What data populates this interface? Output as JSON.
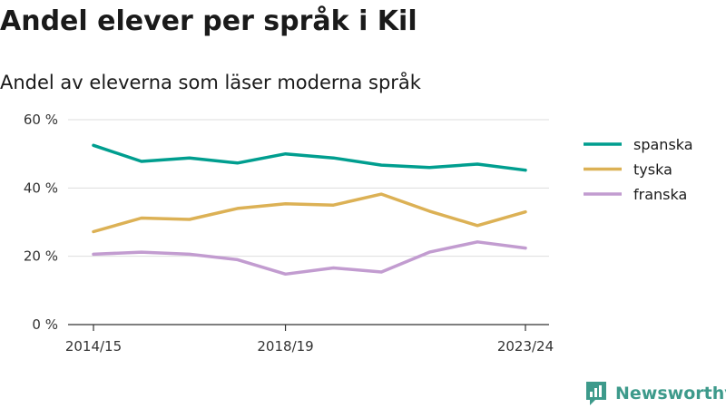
{
  "page": {
    "title": "Andel elever per språk i Kil",
    "subtitle": "Andel av eleverna som läser moderna språk",
    "brand": "Newsworthy",
    "colors": {
      "spanska": "#009e8f",
      "tyska": "#dcb155",
      "franska": "#c29cd0",
      "grid": "#dddddd",
      "axis": "#333333",
      "brand": "#3d9a8b"
    }
  },
  "chart_data": {
    "type": "line",
    "x": [
      "2014/15",
      "2015/16",
      "2016/17",
      "2017/18",
      "2018/19",
      "2019/20",
      "2020/21",
      "2021/22",
      "2022/23",
      "2023/24"
    ],
    "x_tick_labels": [
      "2014/15",
      "2018/19",
      "2023/24"
    ],
    "y_tick_labels": [
      "0 %",
      "20 %",
      "40 %",
      "60 %"
    ],
    "y_ticks": [
      0,
      20,
      40,
      60
    ],
    "ylim": [
      0,
      60
    ],
    "grid": true,
    "legend_position": "right",
    "series": [
      {
        "name": "spanska",
        "values": [
          52.5,
          47.8,
          48.8,
          47.3,
          50.0,
          48.8,
          46.7,
          46.0,
          47.0,
          45.2
        ]
      },
      {
        "name": "tyska",
        "values": [
          27.2,
          31.2,
          30.8,
          34.0,
          35.4,
          35.0,
          38.2,
          33.2,
          29.0,
          33.0
        ]
      },
      {
        "name": "franska",
        "values": [
          20.6,
          21.2,
          20.6,
          19.0,
          14.8,
          16.6,
          15.4,
          21.2,
          24.2,
          22.4
        ]
      }
    ]
  }
}
